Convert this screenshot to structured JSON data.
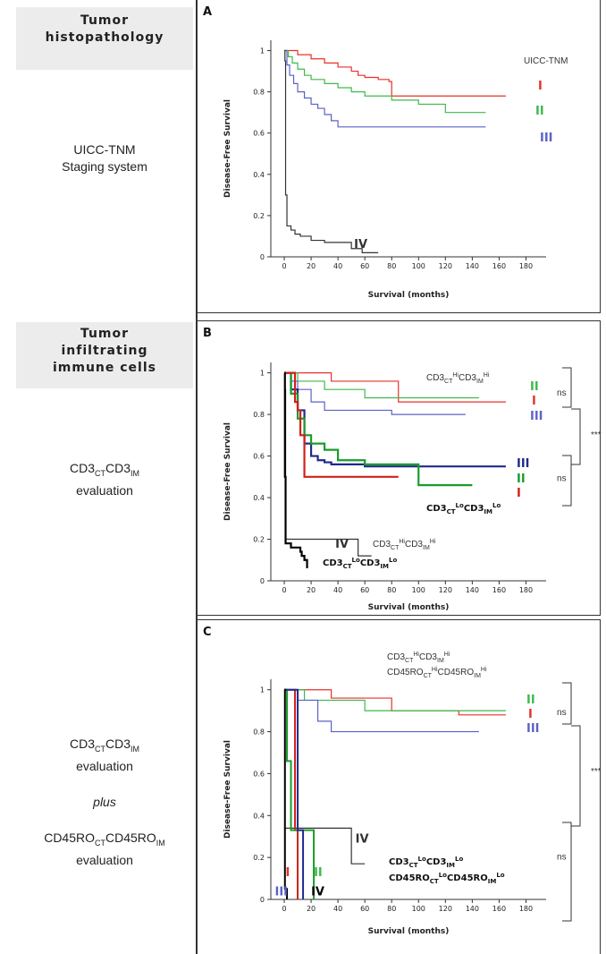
{
  "sidebar": {
    "header1": [
      "Tumor",
      "histopathology"
    ],
    "label1": [
      "UICC-TNM",
      "Staging system"
    ],
    "header2": [
      "Tumor",
      "infiltrating",
      "immune cells"
    ],
    "label2": [
      "CD3",
      "CT",
      "CD3",
      "IM",
      "evaluation"
    ],
    "label3": {
      "line1": [
        "CD3",
        "CT",
        "CD3",
        "IM"
      ],
      "line2": "evaluation",
      "plus": "plus",
      "line3": [
        "CD45RO",
        "CT",
        "CD45RO",
        "IM"
      ],
      "line4": "evaluation"
    }
  },
  "colors": {
    "stage_I": "#e8302a",
    "stage_II": "#3dba4a",
    "stage_III": "#5b62c6",
    "stage_IV": "#333333",
    "low_III": "#1f2a8c",
    "low_II": "#1a9c2a",
    "low_I": "#d0201a",
    "black": "#000000"
  },
  "chart_data": [
    {
      "panel": "A",
      "type": "line",
      "ylabel": "Disease-Free Survival",
      "xlabel": "Survival (months)",
      "xlim": [
        -10,
        195
      ],
      "ylim": [
        0,
        1.05
      ],
      "xticks": [
        0,
        20,
        40,
        60,
        80,
        100,
        120,
        140,
        160,
        180
      ],
      "yticks": [
        0,
        0.2,
        0.4,
        0.6,
        0.8,
        1
      ],
      "ytick_labels": [
        "0",
        "0.2",
        "0.4",
        "0.6",
        "0.8",
        "1"
      ],
      "legend_title": "UICC-TNM",
      "stage_labels": [
        "I",
        "II",
        "III",
        "IV"
      ],
      "series": [
        {
          "name": "I",
          "color_key": "stage_I",
          "width": 1.2,
          "points": [
            [
              0,
              1
            ],
            [
              5,
              1
            ],
            [
              10,
              0.98
            ],
            [
              20,
              0.96
            ],
            [
              30,
              0.94
            ],
            [
              40,
              0.92
            ],
            [
              50,
              0.9
            ],
            [
              55,
              0.88
            ],
            [
              60,
              0.87
            ],
            [
              70,
              0.86
            ],
            [
              78,
              0.85
            ],
            [
              80,
              0.78
            ],
            [
              100,
              0.78
            ],
            [
              150,
              0.78
            ],
            [
              165,
              0.78
            ]
          ]
        },
        {
          "name": "II",
          "color_key": "stage_II",
          "width": 1.2,
          "points": [
            [
              0,
              1
            ],
            [
              3,
              0.97
            ],
            [
              6,
              0.94
            ],
            [
              10,
              0.91
            ],
            [
              15,
              0.88
            ],
            [
              20,
              0.86
            ],
            [
              30,
              0.84
            ],
            [
              40,
              0.82
            ],
            [
              50,
              0.8
            ],
            [
              60,
              0.78
            ],
            [
              80,
              0.76
            ],
            [
              100,
              0.74
            ],
            [
              120,
              0.7
            ],
            [
              150,
              0.7
            ]
          ]
        },
        {
          "name": "III",
          "color_key": "stage_III",
          "width": 1.2,
          "points": [
            [
              0,
              1
            ],
            [
              2,
              0.93
            ],
            [
              4,
              0.88
            ],
            [
              7,
              0.84
            ],
            [
              10,
              0.8
            ],
            [
              15,
              0.77
            ],
            [
              20,
              0.74
            ],
            [
              25,
              0.72
            ],
            [
              30,
              0.69
            ],
            [
              35,
              0.66
            ],
            [
              40,
              0.63
            ],
            [
              60,
              0.63
            ],
            [
              80,
              0.63
            ],
            [
              100,
              0.63
            ],
            [
              150,
              0.63
            ]
          ]
        },
        {
          "name": "IV",
          "color_key": "stage_IV",
          "width": 1.2,
          "points": [
            [
              0,
              1
            ],
            [
              0.5,
              0.95
            ],
            [
              1,
              0.3
            ],
            [
              2,
              0.15
            ],
            [
              5,
              0.13
            ],
            [
              8,
              0.11
            ],
            [
              12,
              0.1
            ],
            [
              20,
              0.08
            ],
            [
              30,
              0.07
            ],
            [
              45,
              0.07
            ],
            [
              50,
              0.04
            ],
            [
              58,
              0.02
            ],
            [
              70,
              0.02
            ]
          ]
        }
      ],
      "annotations": []
    },
    {
      "panel": "B",
      "type": "line",
      "ylabel": "Disease-Free Survival",
      "xlabel": "Survival (months)",
      "xlim": [
        -10,
        195
      ],
      "ylim": [
        0,
        1.05
      ],
      "xticks": [
        0,
        20,
        40,
        60,
        80,
        100,
        120,
        140,
        160,
        180
      ],
      "yticks": [
        0,
        0.2,
        0.4,
        0.6,
        0.8,
        1
      ],
      "ytick_labels": [
        "0",
        "0.2",
        "0.4",
        "0.6",
        "0.8",
        "1"
      ],
      "series": [
        {
          "name": "CD3 Hi I",
          "color_key": "stage_I",
          "width": 1.2,
          "points": [
            [
              0,
              1
            ],
            [
              30,
              1
            ],
            [
              35,
              0.96
            ],
            [
              80,
              0.96
            ],
            [
              85,
              0.86
            ],
            [
              165,
              0.86
            ]
          ]
        },
        {
          "name": "CD3 Hi II",
          "color_key": "stage_II",
          "width": 1.2,
          "points": [
            [
              0,
              1
            ],
            [
              10,
              1
            ],
            [
              10,
              0.96
            ],
            [
              30,
              0.96
            ],
            [
              30,
              0.92
            ],
            [
              60,
              0.92
            ],
            [
              60,
              0.88
            ],
            [
              100,
              0.88
            ],
            [
              145,
              0.88
            ]
          ]
        },
        {
          "name": "CD3 Hi III",
          "color_key": "stage_III",
          "width": 1.2,
          "points": [
            [
              0,
              1
            ],
            [
              5,
              0.96
            ],
            [
              10,
              0.92
            ],
            [
              20,
              0.86
            ],
            [
              30,
              0.82
            ],
            [
              80,
              0.8
            ],
            [
              135,
              0.8
            ]
          ]
        },
        {
          "name": "CD3 Lo III",
          "color_key": "low_III",
          "width": 2.2,
          "points": [
            [
              0,
              1
            ],
            [
              5,
              0.92
            ],
            [
              10,
              0.82
            ],
            [
              15,
              0.66
            ],
            [
              20,
              0.6
            ],
            [
              25,
              0.58
            ],
            [
              30,
              0.57
            ],
            [
              35,
              0.56
            ],
            [
              60,
              0.55
            ],
            [
              100,
              0.55
            ],
            [
              165,
              0.55
            ]
          ]
        },
        {
          "name": "CD3 Lo II",
          "color_key": "low_II",
          "width": 2.2,
          "points": [
            [
              0,
              1
            ],
            [
              5,
              0.9
            ],
            [
              10,
              0.78
            ],
            [
              15,
              0.7
            ],
            [
              20,
              0.66
            ],
            [
              30,
              0.63
            ],
            [
              40,
              0.58
            ],
            [
              60,
              0.56
            ],
            [
              95,
              0.56
            ],
            [
              100,
              0.46
            ],
            [
              140,
              0.46
            ]
          ]
        },
        {
          "name": "CD3 Lo I",
          "color_key": "low_I",
          "width": 2.2,
          "points": [
            [
              0,
              1
            ],
            [
              8,
              0.86
            ],
            [
              10,
              0.82
            ],
            [
              12,
              0.7
            ],
            [
              15,
              0.5
            ],
            [
              40,
              0.5
            ],
            [
              85,
              0.5
            ]
          ]
        },
        {
          "name": "CD3 Hi IV",
          "color_key": "stage_IV",
          "width": 1.2,
          "points": [
            [
              0,
              1
            ],
            [
              0.5,
              0.92
            ],
            [
              1,
              0.2
            ],
            [
              15,
              0.2
            ],
            [
              40,
              0.2
            ],
            [
              55,
              0.12
            ],
            [
              65,
              0.12
            ]
          ]
        },
        {
          "name": "CD3 Lo IV",
          "color_key": "black",
          "width": 2.2,
          "points": [
            [
              0,
              1
            ],
            [
              0.5,
              0.5
            ],
            [
              1,
              0.18
            ],
            [
              5,
              0.16
            ],
            [
              10,
              0.16
            ],
            [
              12,
              0.14
            ],
            [
              13,
              0.12
            ],
            [
              15,
              0.1
            ],
            [
              17,
              0.06
            ]
          ]
        }
      ],
      "annotations": [
        {
          "text": "IV",
          "x": 38,
          "y": 0.16,
          "cls": "rn",
          "color_key": "stage_IV"
        },
        {
          "text": "ns",
          "x": 203,
          "y": 0.89,
          "cls": "ann",
          "color_key": "stage_IV"
        },
        {
          "text": "ns",
          "x": 203,
          "y": 0.48,
          "cls": "ann",
          "color_key": "stage_IV"
        }
      ],
      "hi_label": {
        "t1": "CD3",
        "s1": "CT",
        "p1": "Hi",
        "t2": "CD3",
        "s2": "IM",
        "p2": "Hi"
      },
      "lo_label": {
        "t1": "CD3",
        "s1": "CT",
        "p1": "Lo",
        "t2": "CD3",
        "s2": "IM",
        "p2": "Lo"
      }
    },
    {
      "panel": "C",
      "type": "line",
      "ylabel": "Disease-Free Survival",
      "xlabel": "Survival (months)",
      "xlim": [
        -10,
        195
      ],
      "ylim": [
        0,
        1.05
      ],
      "xticks": [
        0,
        20,
        40,
        60,
        80,
        100,
        120,
        140,
        160,
        180
      ],
      "yticks": [
        0,
        0.2,
        0.4,
        0.6,
        0.8,
        1
      ],
      "ytick_labels": [
        "0",
        "0.2",
        "0.4",
        "0.6",
        "0.8",
        "1"
      ],
      "series": [
        {
          "name": "Hi I",
          "color_key": "stage_I",
          "width": 1.2,
          "points": [
            [
              0,
              1
            ],
            [
              35,
              1
            ],
            [
              35,
              0.96
            ],
            [
              75,
              0.96
            ],
            [
              80,
              0.9
            ],
            [
              130,
              0.88
            ],
            [
              165,
              0.88
            ]
          ]
        },
        {
          "name": "Hi II",
          "color_key": "stage_II",
          "width": 1.2,
          "points": [
            [
              0,
              1
            ],
            [
              15,
              1
            ],
            [
              15,
              0.95
            ],
            [
              60,
              0.95
            ],
            [
              60,
              0.9
            ],
            [
              165,
              0.9
            ]
          ]
        },
        {
          "name": "Hi III",
          "color_key": "stage_III",
          "width": 1.2,
          "points": [
            [
              0,
              1
            ],
            [
              10,
              0.95
            ],
            [
              25,
              0.85
            ],
            [
              35,
              0.8
            ],
            [
              145,
              0.8
            ]
          ]
        },
        {
          "name": "Hi IV",
          "color_key": "stage_IV",
          "width": 1.2,
          "points": [
            [
              0,
              1
            ],
            [
              0.5,
              0.34
            ],
            [
              5,
              0.34
            ],
            [
              25,
              0.34
            ],
            [
              50,
              0.33
            ],
            [
              50,
              0.17
            ],
            [
              60,
              0.17
            ]
          ]
        },
        {
          "name": "Lo I",
          "color_key": "low_I",
          "width": 2.0,
          "points": [
            [
              0,
              1
            ],
            [
              8,
              1
            ],
            [
              8,
              0.33
            ],
            [
              10,
              0.33
            ],
            [
              10,
              0
            ]
          ]
        },
        {
          "name": "Lo II",
          "color_key": "low_II",
          "width": 2.0,
          "points": [
            [
              0,
              1
            ],
            [
              2,
              0.66
            ],
            [
              5,
              0.66
            ],
            [
              5,
              0.33
            ],
            [
              22,
              0.33
            ],
            [
              22,
              0
            ]
          ]
        },
        {
          "name": "Lo III",
          "color_key": "low_III",
          "width": 2.0,
          "points": [
            [
              0,
              1
            ],
            [
              10,
              1
            ],
            [
              10,
              0.33
            ],
            [
              14,
              0.33
            ],
            [
              14,
              0
            ]
          ]
        },
        {
          "name": "Lo IV",
          "color_key": "black",
          "width": 2.0,
          "points": [
            [
              0,
              1
            ],
            [
              0.5,
              0.05
            ],
            [
              2,
              0.05
            ],
            [
              2,
              0
            ]
          ]
        }
      ],
      "annotations": [
        {
          "text": "IV",
          "x": 53,
          "y": 0.27,
          "cls": "rn",
          "color_key": "stage_IV"
        },
        {
          "text": "I",
          "x": 1,
          "y": 0.11,
          "cls": "rn",
          "color_key": "stage_I"
        },
        {
          "text": "III",
          "x": -7,
          "y": 0.02,
          "cls": "rn",
          "color_key": "stage_III"
        },
        {
          "text": "II",
          "x": 22,
          "y": 0.11,
          "cls": "rn",
          "color_key": "stage_II"
        },
        {
          "text": "IV",
          "x": 20,
          "y": 0.02,
          "cls": "rn",
          "color_key": "black"
        },
        {
          "text": "ns",
          "x": 203,
          "y": 0.88,
          "cls": "ann",
          "color_key": "stage_IV"
        },
        {
          "text": "ns",
          "x": 203,
          "y": 0.19,
          "cls": "ann",
          "color_key": "stage_IV"
        }
      ],
      "hi_label": {
        "t1": "CD3",
        "s1": "CT",
        "p1": "Hi",
        "t2": "CD3",
        "s2": "IM",
        "p2": "Hi",
        "u1": "CD45RO",
        "us1": "CT",
        "up1": "Hi",
        "u2": "CD45RO",
        "us2": "IM",
        "up2": "Hi"
      },
      "lo_label": {
        "t1": "CD3",
        "s1": "CT",
        "p1": "Lo",
        "t2": "CD3",
        "s2": "IM",
        "p2": "Lo",
        "u1": "CD45RO",
        "us1": "CT",
        "up1": "Lo",
        "u2": "CD45RO",
        "us2": "IM",
        "up2": "Lo"
      }
    }
  ]
}
